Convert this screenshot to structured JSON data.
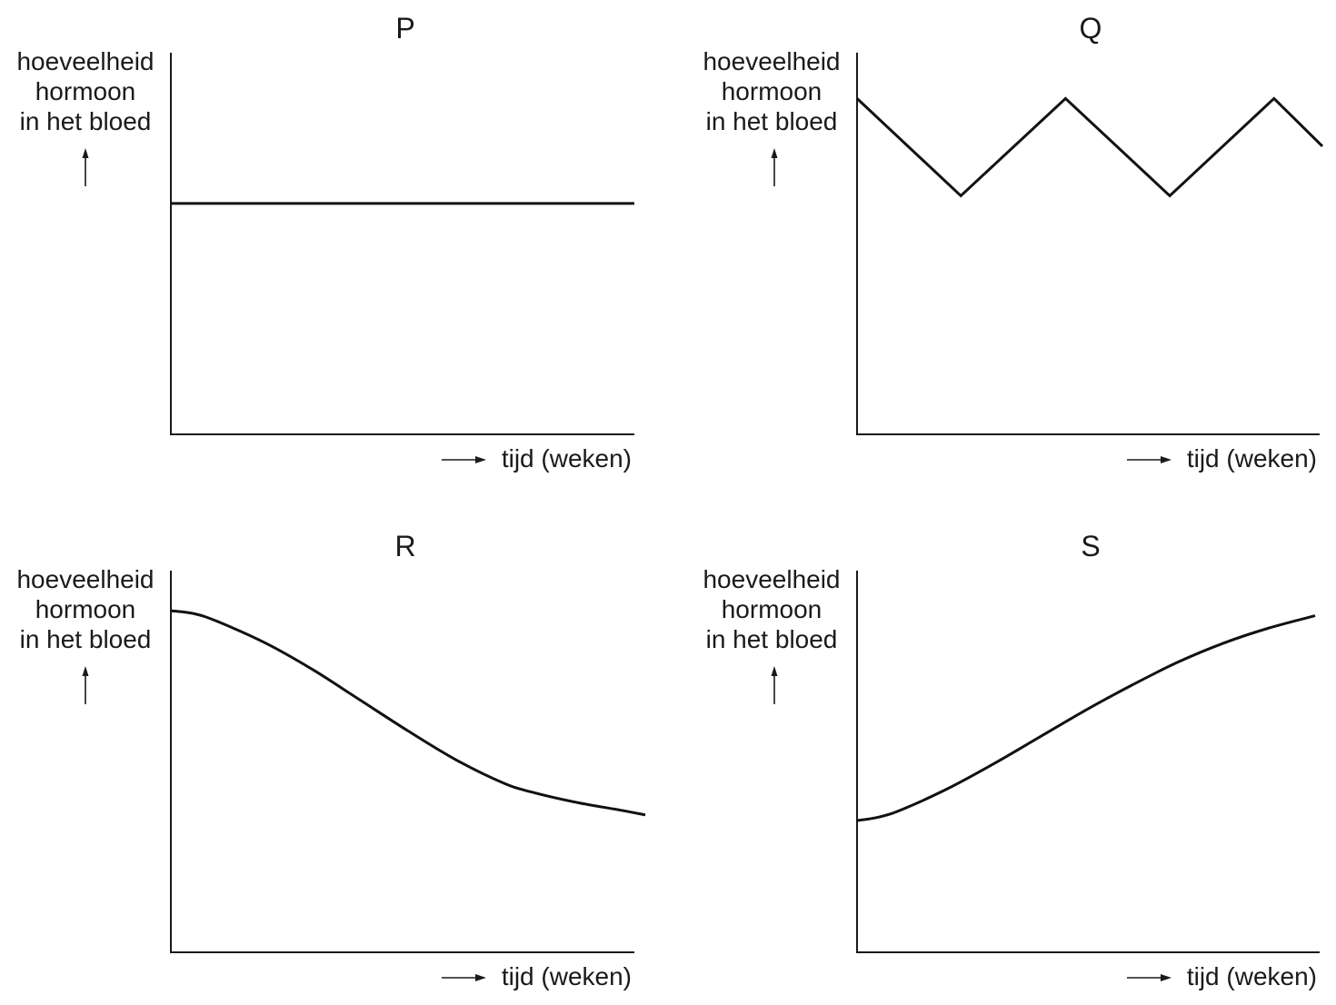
{
  "chart_data": [
    {
      "type": "line",
      "title": "P",
      "ylabel": [
        "hoeveelheid",
        "hormoon",
        "in het bloed"
      ],
      "xlabel": "tijd (weken)",
      "ylim": [
        0,
        1
      ],
      "xlim": [
        0,
        1
      ],
      "series": [
        {
          "x": [
            0,
            1
          ],
          "y": [
            0.605,
            0.605
          ]
        }
      ]
    },
    {
      "type": "line",
      "title": "Q",
      "ylabel": [
        "hoeveelheid",
        "hormoon",
        "in het bloed"
      ],
      "xlabel": "tijd (weken)",
      "ylim": [
        0,
        1
      ],
      "xlim": [
        0,
        1
      ],
      "series": [
        {
          "x": [
            0,
            0.223,
            0.448,
            0.672,
            0.896,
            1.0
          ],
          "y": [
            0.88,
            0.625,
            0.88,
            0.625,
            0.88,
            0.755
          ]
        }
      ]
    },
    {
      "type": "line",
      "title": "R",
      "ylabel": [
        "hoeveelheid",
        "hormoon",
        "in het bloed"
      ],
      "xlabel": "tijd (weken)",
      "ylim": [
        0,
        1
      ],
      "xlim": [
        0,
        1
      ],
      "series": [
        {
          "x": [
            0,
            0.05,
            0.1,
            0.2,
            0.3,
            0.4,
            0.5,
            0.6,
            0.7,
            0.76,
            0.85,
            0.95,
            1.0
          ],
          "y": [
            0.895,
            0.887,
            0.866,
            0.81,
            0.74,
            0.66,
            0.58,
            0.505,
            0.444,
            0.42,
            0.394,
            0.372,
            0.36
          ]
        }
      ]
    },
    {
      "type": "line",
      "title": "S",
      "ylabel": [
        "hoeveelheid",
        "hormoon",
        "in het bloed"
      ],
      "xlabel": "tijd (weken)",
      "ylim": [
        0,
        1
      ],
      "xlim": [
        0,
        1
      ],
      "series": [
        {
          "x": [
            0,
            0.05,
            0.1,
            0.2,
            0.3,
            0.4,
            0.5,
            0.6,
            0.7,
            0.8,
            0.9,
            1.0
          ],
          "y": [
            0.345,
            0.355,
            0.375,
            0.43,
            0.495,
            0.565,
            0.635,
            0.7,
            0.76,
            0.81,
            0.85,
            0.882
          ]
        }
      ]
    }
  ]
}
